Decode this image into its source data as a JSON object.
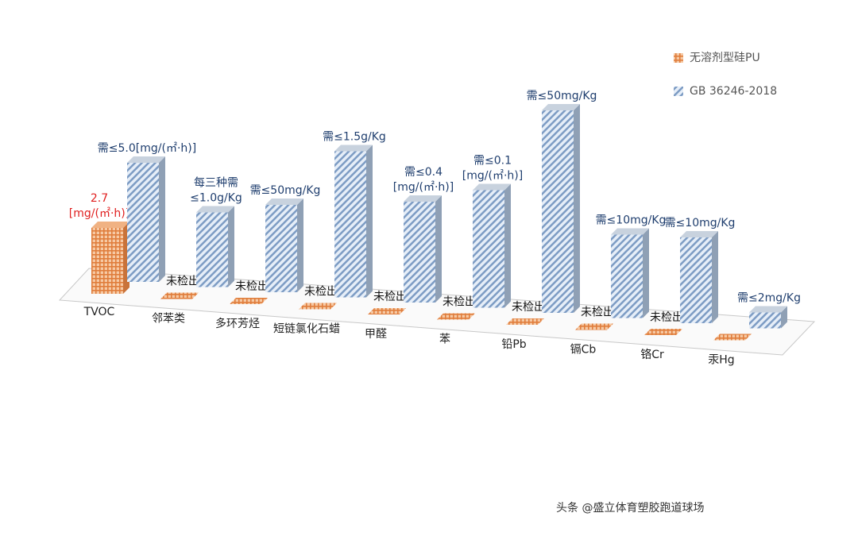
{
  "chart_data": {
    "type": "bar3d",
    "categories": [
      "TVOC",
      "邻苯类",
      "多环芳烃",
      "短链氯化石蜡",
      "甲醛",
      "苯",
      "铅Pb",
      "镉Cb",
      "铬Cr",
      "汞Hg"
    ],
    "ylim": [
      0,
      260
    ],
    "series": [
      {
        "name": "无溶剂型硅PU",
        "color": "#e8935a",
        "values": [
          83,
          0,
          0,
          0,
          0,
          0,
          0,
          0,
          0,
          0
        ],
        "annotations": [
          [
            "2.7",
            "[mg/(㎡·h)]"
          ],
          [
            "未检出"
          ],
          [
            "未检出"
          ],
          [
            "未检出"
          ],
          [
            "未检出"
          ],
          [
            "未检出"
          ],
          [
            "未检出"
          ],
          [
            "未检出"
          ],
          [
            "未检出"
          ],
          null
        ],
        "annotation_color": "#e02020"
      },
      {
        "name": "GB 36246-2018",
        "color": "#6f8fb8",
        "values": [
          150,
          94,
          110,
          184,
          127,
          148,
          255,
          105,
          108,
          20
        ],
        "annotations": [
          [
            "需≤5.0[mg/(㎡·h)]"
          ],
          [
            "每三种需",
            "≤1.0g/Kg"
          ],
          [
            "需≤50mg/Kg"
          ],
          [
            "需≤1.5g/Kg"
          ],
          [
            "需≤0.4",
            "[mg/(㎡·h)]"
          ],
          [
            "需≤0.1",
            "[mg/(㎡·h)]"
          ],
          [
            "需≤50mg/Kg"
          ],
          [
            "需≤10mg/Kg"
          ],
          [
            "需≤10mg/Kg"
          ],
          [
            "需≤2mg/Kg"
          ]
        ],
        "annotation_color": "#1f3e6e"
      }
    ],
    "watermark": "头条 @盛立体育塑胶跑道球场"
  }
}
